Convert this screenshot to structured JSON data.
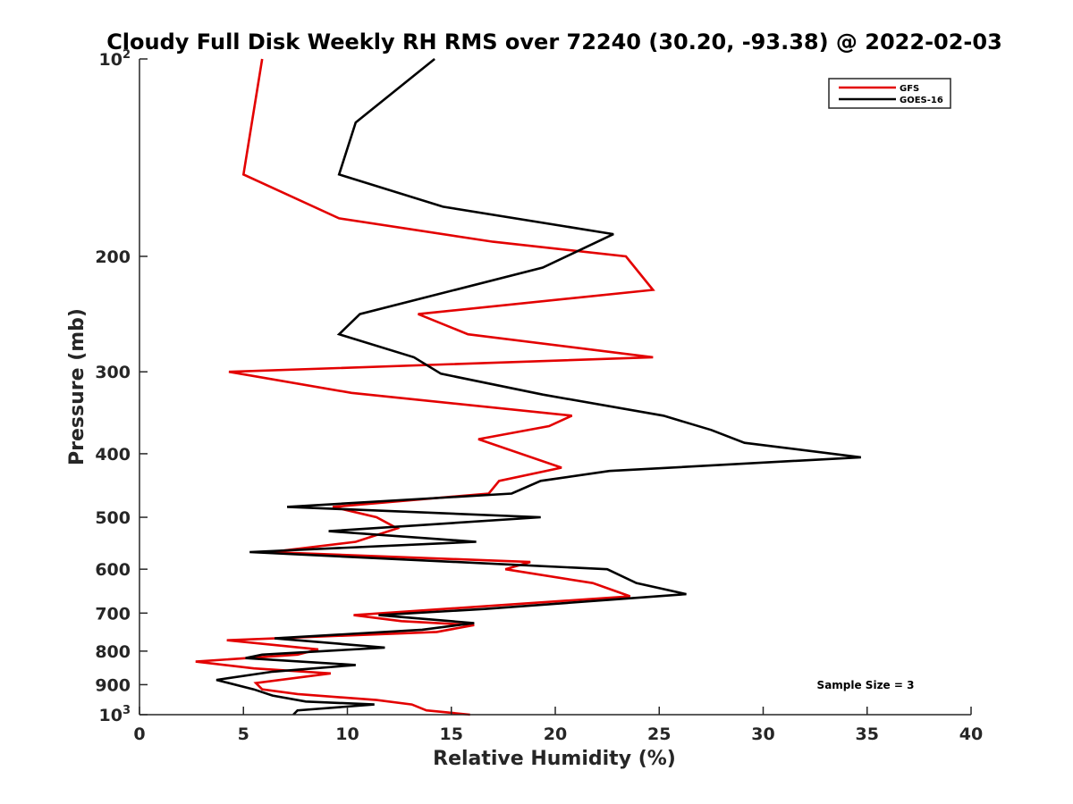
{
  "chart_data": {
    "type": "line",
    "title": "Cloudy Full Disk Weekly RH RMS over 72240 (30.20, -93.38) @ 2022-02-03",
    "xlabel": "Relative Humidity (%)",
    "ylabel": "Pressure (mb)",
    "xlim": [
      0,
      40
    ],
    "ylim": [
      100,
      1000
    ],
    "yscale": "log",
    "y_reversed": true,
    "xticks": [
      0,
      5,
      10,
      15,
      20,
      25,
      30,
      35,
      40
    ],
    "xtick_labels": [
      "0",
      "5",
      "10",
      "15",
      "20",
      "25",
      "30",
      "35",
      "40"
    ],
    "yticks": [
      {
        "value": 100,
        "base": "10",
        "exp": "2"
      },
      {
        "value": 200,
        "label": "200"
      },
      {
        "value": 300,
        "label": "300"
      },
      {
        "value": 400,
        "label": "400"
      },
      {
        "value": 500,
        "label": "500"
      },
      {
        "value": 600,
        "label": "600"
      },
      {
        "value": 700,
        "label": "700"
      },
      {
        "value": 800,
        "label": "800"
      },
      {
        "value": 900,
        "label": "900"
      },
      {
        "value": 1000,
        "base": "10",
        "exp": "3"
      }
    ],
    "legend_position": "top-right",
    "annotation": "Sample Size = 3",
    "series": [
      {
        "name": "GFS",
        "color": "#e30000",
        "points": [
          [
            5.9,
            100
          ],
          [
            5.0,
            150
          ],
          [
            9.6,
            175
          ],
          [
            17,
            190
          ],
          [
            23.4,
            200
          ],
          [
            24.7,
            225
          ],
          [
            13.4,
            245
          ],
          [
            15.8,
            263
          ],
          [
            24.7,
            285
          ],
          [
            4.3,
            300
          ],
          [
            10.2,
            323
          ],
          [
            20.8,
            350
          ],
          [
            19.7,
            363
          ],
          [
            16.3,
            380
          ],
          [
            20.3,
            420
          ],
          [
            17.3,
            440
          ],
          [
            16.8,
            460
          ],
          [
            9.3,
            482
          ],
          [
            11.4,
            500
          ],
          [
            12.4,
            520
          ],
          [
            10.4,
            545
          ],
          [
            6.3,
            565
          ],
          [
            18.8,
            585
          ],
          [
            17.6,
            600
          ],
          [
            21.8,
            630
          ],
          [
            23.6,
            660
          ],
          [
            10.3,
            705
          ],
          [
            12.6,
            720
          ],
          [
            16.1,
            730
          ],
          [
            14.3,
            748
          ],
          [
            4.2,
            770
          ],
          [
            8.6,
            795
          ],
          [
            7.6,
            810
          ],
          [
            2.7,
            830
          ],
          [
            5.5,
            850
          ],
          [
            9.2,
            865
          ],
          [
            5.6,
            895
          ],
          [
            5.9,
            915
          ],
          [
            7.6,
            930
          ],
          [
            11.4,
            950
          ],
          [
            13.1,
            965
          ],
          [
            13.8,
            985
          ],
          [
            15.9,
            1000
          ]
        ]
      },
      {
        "name": "GOES-16",
        "color": "#000000",
        "points": [
          [
            14.2,
            100
          ],
          [
            10.4,
            125
          ],
          [
            9.6,
            150
          ],
          [
            14.6,
            168
          ],
          [
            22.8,
            185
          ],
          [
            19.4,
            208
          ],
          [
            10.6,
            245
          ],
          [
            9.6,
            263
          ],
          [
            13.2,
            285
          ],
          [
            14.5,
            302
          ],
          [
            19.4,
            325
          ],
          [
            25.2,
            350
          ],
          [
            27.5,
            368
          ],
          [
            29.1,
            385
          ],
          [
            34.7,
            405
          ],
          [
            22.6,
            425
          ],
          [
            19.3,
            440
          ],
          [
            17.9,
            460
          ],
          [
            7.1,
            482
          ],
          [
            19.3,
            500
          ],
          [
            9.1,
            525
          ],
          [
            16.2,
            545
          ],
          [
            5.3,
            565
          ],
          [
            22.5,
            600
          ],
          [
            23.9,
            630
          ],
          [
            26.3,
            655
          ],
          [
            16.6,
            690
          ],
          [
            11.5,
            705
          ],
          [
            16.1,
            725
          ],
          [
            13.6,
            742
          ],
          [
            6.5,
            765
          ],
          [
            11.8,
            790
          ],
          [
            5.9,
            810
          ],
          [
            5.1,
            820
          ],
          [
            10.4,
            840
          ],
          [
            6.4,
            860
          ],
          [
            3.7,
            885
          ],
          [
            5.5,
            915
          ],
          [
            6.4,
            935
          ],
          [
            8.0,
            955
          ],
          [
            11.3,
            965
          ],
          [
            7.6,
            985
          ],
          [
            7.4,
            1000
          ]
        ]
      }
    ]
  }
}
